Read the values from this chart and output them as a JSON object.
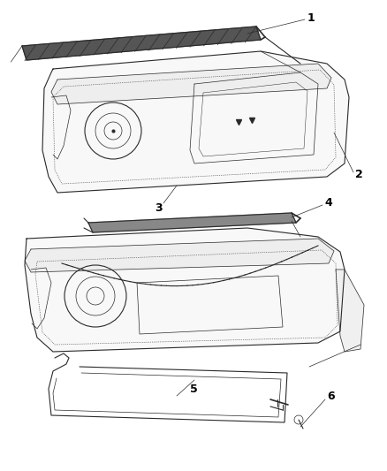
{
  "background_color": "#ffffff",
  "line_color": "#2a2a2a",
  "label_color": "#000000",
  "fig_width": 4.39,
  "fig_height": 5.33,
  "dpi": 100,
  "label_fontsize": 9,
  "lw_thin": 0.5,
  "lw_med": 0.8,
  "lw_thick": 1.2,
  "lw_heavy": 1.6
}
